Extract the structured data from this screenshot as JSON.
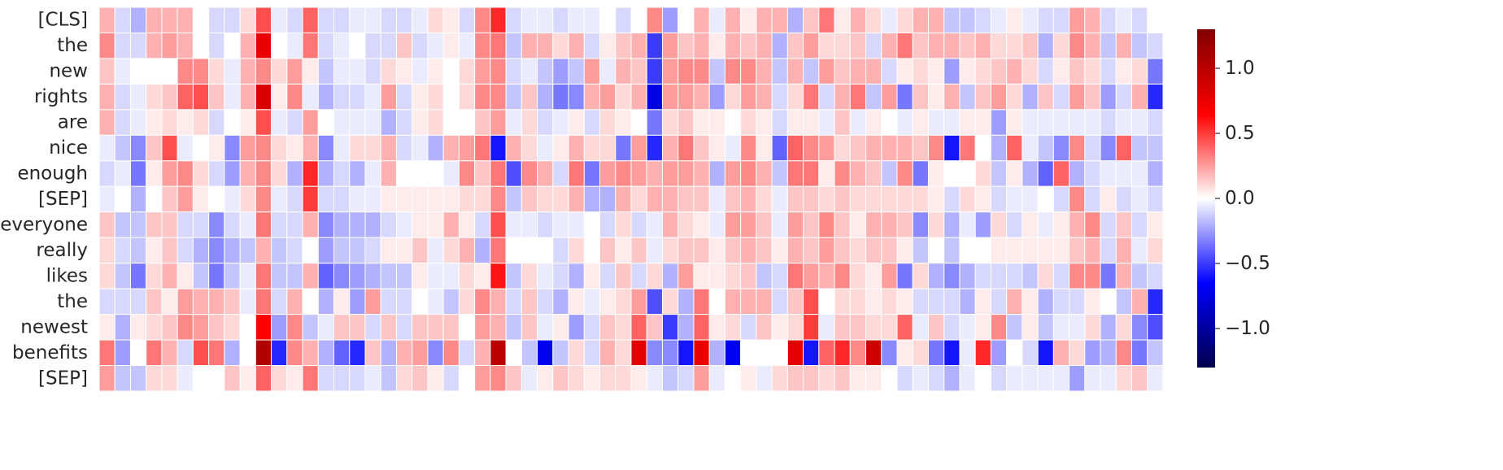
{
  "chart_data": {
    "type": "heatmap",
    "title": "",
    "xlabel": "",
    "ylabel": "",
    "rows": [
      "[CLS]",
      "the",
      "new",
      "rights",
      "are",
      "nice",
      "enough",
      "[SEP]",
      "everyone",
      "really",
      "likes",
      "the",
      "newest",
      "benefits",
      "[SEP]"
    ],
    "n_columns": 68,
    "colormap": "seismic",
    "vmin": -1.3,
    "vmax": 1.3,
    "colorbar": {
      "ticks": [
        1.0,
        0.5,
        0.0,
        -0.5,
        -1.0
      ],
      "tick_labels": [
        "1.0",
        "0.5",
        "0.0",
        "−0.5",
        "−1.0"
      ]
    },
    "values": [
      [
        0.2,
        -0.1,
        -0.2,
        0.2,
        0.2,
        0.2,
        0.0,
        -0.1,
        -0.1,
        0.1,
        0.45,
        -0.05,
        -0.1,
        0.4,
        -0.1,
        -0.1,
        -0.05,
        -0.05,
        -0.1,
        -0.1,
        -0.05,
        0.1,
        0.05,
        -0.1,
        0.3,
        0.55,
        -0.1,
        -0.05,
        -0.05,
        -0.1,
        -0.05,
        -0.05,
        0.0,
        -0.1,
        0.0,
        0.3,
        -0.25,
        0.0,
        0.2,
        -0.05,
        0.2,
        0.05,
        0.2,
        0.2,
        -0.2,
        0.15,
        0.35,
        0.05,
        0.2,
        0.1,
        -0.05,
        0.1,
        0.2,
        0.2,
        -0.15,
        -0.15,
        -0.1,
        -0.05,
        0.05,
        -0.05,
        -0.1,
        -0.1,
        0.25,
        0.2,
        -0.1,
        -0.05,
        -0.1,
        0.0
      ],
      [
        0.3,
        -0.1,
        -0.1,
        0.2,
        0.25,
        0.2,
        0.0,
        -0.1,
        0.0,
        0.2,
        0.75,
        0.0,
        -0.05,
        0.35,
        -0.1,
        -0.05,
        0.0,
        -0.1,
        -0.1,
        0.15,
        -0.1,
        -0.05,
        0.05,
        -0.05,
        0.3,
        0.35,
        -0.15,
        0.2,
        0.2,
        0.1,
        0.2,
        -0.1,
        0.05,
        0.15,
        0.2,
        -0.5,
        0.25,
        0.15,
        0.2,
        0.05,
        0.2,
        0.15,
        0.2,
        -0.2,
        0.15,
        0.25,
        0.1,
        0.1,
        0.15,
        -0.1,
        0.2,
        0.35,
        0.15,
        0.2,
        0.2,
        0.15,
        0.2,
        0.1,
        0.1,
        0.15,
        -0.2,
        0.1,
        0.3,
        0.2,
        -0.15,
        0.2,
        -0.15,
        -0.1
      ],
      [
        0.15,
        -0.05,
        0.0,
        0.0,
        0.0,
        0.3,
        0.3,
        0.1,
        -0.05,
        0.2,
        0.3,
        0.1,
        0.25,
        0.05,
        -0.15,
        -0.05,
        -0.05,
        -0.1,
        0.1,
        0.05,
        -0.05,
        0.05,
        0.0,
        0.1,
        0.25,
        0.3,
        -0.1,
        -0.05,
        -0.15,
        -0.25,
        -0.15,
        0.25,
        -0.05,
        0.2,
        0.15,
        -0.5,
        0.25,
        0.3,
        0.3,
        -0.15,
        0.3,
        0.3,
        0.2,
        -0.15,
        0.2,
        -0.15,
        0.25,
        0.15,
        0.2,
        0.2,
        -0.1,
        0.05,
        0.1,
        0.05,
        -0.25,
        0.05,
        0.1,
        0.15,
        0.2,
        0.1,
        -0.1,
        0.05,
        0.15,
        0.1,
        -0.1,
        0.05,
        0.1,
        -0.35
      ],
      [
        0.2,
        -0.1,
        -0.05,
        0.1,
        0.15,
        0.4,
        0.45,
        0.15,
        -0.05,
        0.2,
        0.85,
        0.05,
        0.3,
        -0.05,
        -0.2,
        -0.1,
        -0.1,
        -0.05,
        0.25,
        -0.1,
        0.05,
        0.1,
        0.0,
        0.1,
        0.3,
        0.3,
        -0.15,
        0.15,
        -0.2,
        -0.35,
        -0.3,
        0.2,
        0.25,
        0.1,
        0.2,
        -0.75,
        0.25,
        0.25,
        0.2,
        -0.25,
        0.1,
        0.25,
        0.2,
        -0.1,
        0.1,
        0.35,
        -0.1,
        0.2,
        0.35,
        -0.15,
        0.25,
        -0.35,
        0.15,
        0.05,
        0.2,
        -0.15,
        0.15,
        0.25,
        0.1,
        -0.2,
        0.15,
        -0.1,
        0.25,
        0.15,
        -0.25,
        -0.1,
        0.2,
        -0.55
      ],
      [
        0.2,
        -0.1,
        -0.05,
        0.05,
        0.1,
        0.05,
        0.1,
        -0.1,
        0.0,
        0.05,
        0.45,
        -0.05,
        -0.1,
        0.25,
        0.0,
        -0.05,
        -0.05,
        -0.05,
        -0.2,
        -0.1,
        0.05,
        0.1,
        0.0,
        0.0,
        0.15,
        0.25,
        -0.05,
        0.1,
        -0.1,
        -0.05,
        0.05,
        -0.1,
        0.1,
        0.05,
        0.0,
        -0.35,
        0.1,
        0.15,
        0.05,
        0.05,
        0.0,
        0.1,
        0.05,
        -0.1,
        0.05,
        0.05,
        -0.05,
        0.15,
        -0.05,
        0.05,
        0.0,
        -0.05,
        0.05,
        -0.05,
        -0.05,
        0.05,
        0.05,
        -0.25,
        0.05,
        -0.05,
        -0.05,
        -0.05,
        -0.05,
        -0.05,
        -0.1,
        -0.05,
        -0.05,
        -0.1
      ],
      [
        -0.05,
        -0.15,
        -0.3,
        0.15,
        0.45,
        -0.05,
        0.0,
        0.05,
        -0.3,
        0.25,
        0.3,
        0.1,
        0.05,
        0.2,
        -0.3,
        -0.05,
        0.1,
        0.1,
        0.2,
        -0.1,
        -0.05,
        -0.2,
        0.2,
        0.25,
        0.35,
        -0.6,
        0.2,
        0.1,
        -0.05,
        0.05,
        0.2,
        0.1,
        0.1,
        -0.35,
        0.25,
        -0.55,
        0.2,
        0.35,
        0.15,
        0.05,
        -0.05,
        0.3,
        0.05,
        -0.4,
        0.4,
        0.3,
        0.25,
        0.1,
        0.15,
        0.2,
        0.2,
        0.2,
        0.15,
        0.3,
        -0.6,
        0.35,
        0.0,
        -0.2,
        0.4,
        -0.05,
        -0.15,
        -0.3,
        0.3,
        -0.1,
        -0.3,
        0.4,
        -0.15,
        -0.15
      ],
      [
        -0.1,
        -0.05,
        -0.35,
        0.05,
        0.25,
        0.3,
        0.1,
        -0.1,
        -0.25,
        0.2,
        0.3,
        0.1,
        -0.2,
        0.55,
        -0.2,
        -0.1,
        -0.2,
        -0.05,
        0.2,
        0.0,
        0.0,
        0.0,
        -0.05,
        0.3,
        0.15,
        0.35,
        -0.45,
        0.3,
        0.2,
        -0.1,
        0.35,
        -0.35,
        0.25,
        0.3,
        0.25,
        0.2,
        0.25,
        0.25,
        0.2,
        -0.2,
        0.25,
        0.3,
        0.2,
        -0.15,
        0.35,
        0.35,
        0.05,
        0.3,
        0.2,
        0.15,
        -0.15,
        0.3,
        -0.35,
        0.05,
        0.0,
        0.0,
        0.1,
        -0.15,
        0.05,
        -0.2,
        -0.4,
        0.4,
        -0.2,
        -0.1,
        -0.05,
        -0.05,
        -0.05,
        -0.2
      ],
      [
        -0.05,
        0.0,
        -0.2,
        0.0,
        0.15,
        0.25,
        0.05,
        0.0,
        -0.05,
        0.1,
        0.3,
        -0.05,
        -0.1,
        0.5,
        -0.1,
        -0.1,
        -0.05,
        -0.05,
        0.05,
        0.05,
        0.05,
        0.05,
        0.05,
        0.1,
        0.1,
        0.3,
        -0.15,
        0.15,
        0.1,
        0.1,
        0.2,
        -0.2,
        -0.2,
        0.2,
        0.1,
        0.2,
        0.2,
        0.15,
        0.15,
        -0.05,
        0.15,
        0.2,
        0.1,
        -0.05,
        0.15,
        0.15,
        0.1,
        0.15,
        0.1,
        0.1,
        0.1,
        0.1,
        0.1,
        0.05,
        -0.1,
        0.1,
        0.05,
        -0.1,
        -0.05,
        -0.05,
        0.0,
        -0.1,
        0.3,
        -0.1,
        0.05,
        -0.1,
        -0.05,
        -0.1
      ],
      [
        0.15,
        -0.15,
        -0.15,
        0.15,
        0.15,
        -0.1,
        -0.1,
        -0.3,
        -0.1,
        -0.05,
        0.35,
        -0.1,
        -0.1,
        0.2,
        -0.3,
        -0.2,
        -0.2,
        -0.2,
        -0.1,
        -0.05,
        0.05,
        0.05,
        0.2,
        0.05,
        -0.1,
        0.45,
        -0.05,
        -0.05,
        -0.1,
        -0.05,
        -0.05,
        0.0,
        -0.1,
        0.1,
        -0.1,
        -0.05,
        0.2,
        0.1,
        0.05,
        -0.05,
        0.25,
        0.25,
        0.15,
        -0.05,
        0.25,
        0.15,
        0.3,
        0.15,
        0.05,
        0.2,
        0.2,
        0.15,
        -0.3,
        0.1,
        -0.2,
        -0.05,
        -0.25,
        0.1,
        -0.1,
        0.05,
        -0.05,
        0.05,
        0.2,
        0.3,
        -0.1,
        0.15,
        -0.1,
        0.05
      ],
      [
        0.1,
        -0.1,
        -0.15,
        0.05,
        0.15,
        -0.1,
        -0.2,
        -0.3,
        -0.2,
        -0.15,
        0.2,
        -0.15,
        -0.1,
        0.0,
        -0.25,
        -0.15,
        -0.15,
        -0.1,
        0.05,
        0.05,
        0.15,
        -0.05,
        0.1,
        0.2,
        -0.2,
        0.35,
        0.0,
        0.0,
        0.0,
        -0.1,
        0.1,
        0.0,
        0.15,
        0.05,
        0.15,
        -0.05,
        0.1,
        0.15,
        0.15,
        0.05,
        0.15,
        0.2,
        0.15,
        0.05,
        0.2,
        0.15,
        0.25,
        0.15,
        0.1,
        0.15,
        0.15,
        0.05,
        -0.15,
        0.0,
        -0.15,
        0.0,
        0.0,
        0.05,
        0.05,
        0.05,
        0.05,
        0.05,
        0.15,
        0.2,
        -0.1,
        0.2,
        -0.05,
        0.1
      ],
      [
        0.1,
        -0.15,
        -0.35,
        0.1,
        0.2,
        0.05,
        -0.15,
        -0.35,
        -0.15,
        -0.05,
        0.35,
        -0.15,
        -0.15,
        0.2,
        -0.4,
        -0.3,
        -0.25,
        -0.2,
        -0.15,
        -0.15,
        0.05,
        -0.05,
        -0.05,
        0.1,
        0.05,
        0.6,
        -0.15,
        0.1,
        -0.05,
        -0.1,
        -0.2,
        0.05,
        -0.1,
        0.15,
        -0.1,
        0.1,
        -0.2,
        0.25,
        0.05,
        0.05,
        0.1,
        0.15,
        -0.15,
        -0.1,
        0.35,
        0.25,
        0.2,
        0.3,
        0.1,
        0.05,
        0.25,
        -0.35,
        0.1,
        -0.2,
        -0.3,
        -0.2,
        -0.1,
        -0.1,
        -0.1,
        -0.15,
        0.1,
        -0.1,
        0.3,
        0.3,
        -0.35,
        0.2,
        -0.15,
        -0.1
      ],
      [
        -0.1,
        -0.1,
        -0.1,
        0.15,
        0.05,
        0.25,
        0.2,
        0.2,
        0.15,
        -0.05,
        0.35,
        -0.1,
        0.2,
        0.0,
        -0.2,
        0.05,
        -0.25,
        0.25,
        -0.1,
        -0.1,
        0.0,
        -0.05,
        -0.15,
        0.1,
        0.3,
        0.2,
        -0.1,
        0.15,
        -0.1,
        -0.2,
        0.05,
        -0.05,
        0.05,
        0.1,
        0.25,
        -0.45,
        0.1,
        -0.2,
        0.35,
        0.0,
        0.2,
        0.2,
        0.2,
        -0.1,
        0.15,
        0.45,
        0.0,
        0.1,
        0.1,
        0.05,
        0.1,
        0.05,
        -0.1,
        -0.1,
        -0.1,
        -0.2,
        0.05,
        -0.1,
        0.2,
        0.05,
        -0.2,
        -0.1,
        -0.1,
        0.05,
        0.0,
        -0.15,
        0.2,
        -0.55
      ],
      [
        0.05,
        -0.2,
        0.05,
        0.1,
        0.15,
        0.3,
        0.25,
        0.15,
        0.1,
        0.0,
        0.65,
        -0.25,
        0.3,
        -0.15,
        -0.05,
        0.15,
        0.15,
        -0.1,
        0.15,
        -0.1,
        0.15,
        0.15,
        0.15,
        0.0,
        0.25,
        0.2,
        -0.15,
        0.15,
        -0.05,
        0.05,
        -0.25,
        -0.1,
        0.15,
        0.1,
        0.4,
        0.15,
        -0.5,
        -0.2,
        0.4,
        0.05,
        0.1,
        -0.1,
        0.15,
        0.05,
        0.1,
        0.5,
        -0.05,
        0.15,
        0.15,
        0.1,
        0.1,
        0.4,
        -0.05,
        0.15,
        -0.1,
        -0.05,
        0.05,
        0.3,
        -0.15,
        0.05,
        -0.15,
        -0.05,
        -0.05,
        0.1,
        -0.2,
        0.1,
        -0.3,
        -0.45
      ],
      [
        0.35,
        -0.25,
        0.0,
        0.35,
        0.2,
        -0.1,
        0.45,
        0.35,
        -0.2,
        0.0,
        1.05,
        -0.55,
        0.3,
        0.2,
        -0.2,
        -0.4,
        -0.55,
        0.15,
        -0.2,
        0.2,
        0.25,
        -0.3,
        0.3,
        -0.1,
        0.2,
        1.0,
        0.0,
        -0.15,
        -0.7,
        -0.15,
        0.1,
        -0.1,
        0.2,
        0.1,
        0.8,
        -0.3,
        -0.3,
        -0.6,
        0.75,
        -0.2,
        -0.7,
        0.0,
        0.0,
        0.0,
        0.8,
        -0.6,
        0.4,
        0.55,
        0.3,
        0.9,
        -0.3,
        0.05,
        0.1,
        -0.35,
        -0.6,
        -0.05,
        0.55,
        -0.25,
        0.0,
        -0.1,
        -0.6,
        0.2,
        0.1,
        -0.25,
        -0.2,
        0.3,
        -0.35,
        -0.15
      ],
      [
        0.25,
        -0.15,
        -0.15,
        0.1,
        0.1,
        -0.05,
        0.0,
        0.0,
        0.15,
        0.05,
        0.4,
        0.1,
        0.05,
        0.35,
        -0.1,
        -0.1,
        -0.1,
        -0.05,
        -0.15,
        0.1,
        0.15,
        0.05,
        -0.1,
        0.0,
        0.25,
        0.3,
        0.15,
        -0.05,
        0.05,
        0.15,
        0.1,
        0.05,
        0.1,
        0.1,
        0.05,
        -0.05,
        -0.15,
        -0.1,
        0.25,
        -0.05,
        0.0,
        0.05,
        -0.05,
        0.1,
        0.15,
        0.15,
        0.1,
        0.15,
        0.05,
        0.05,
        0.0,
        -0.1,
        -0.05,
        -0.1,
        -0.2,
        -0.05,
        0.0,
        -0.1,
        -0.05,
        -0.05,
        -0.05,
        -0.05,
        -0.25,
        -0.05,
        -0.05,
        0.1,
        0.15,
        -0.05
      ]
    ]
  }
}
